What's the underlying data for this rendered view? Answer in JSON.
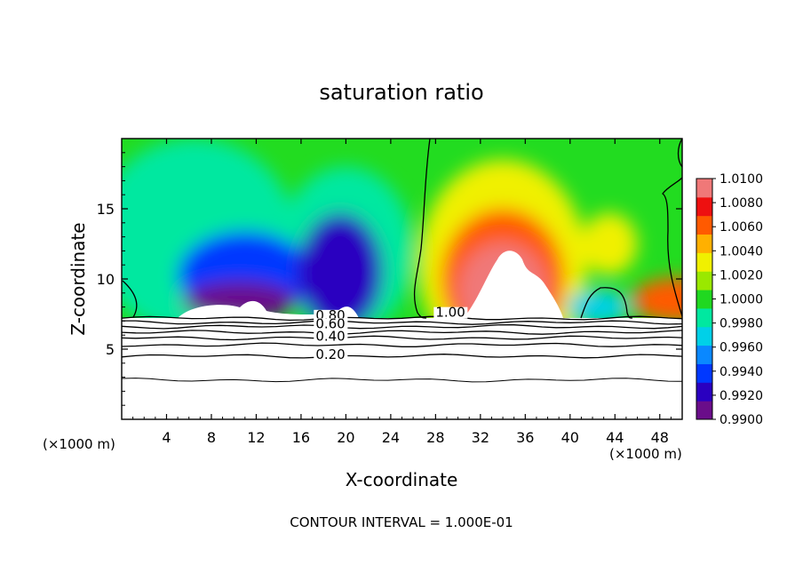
{
  "chart_data": {
    "type": "heatmap",
    "title": "saturation ratio",
    "xlabel": "X-coordinate",
    "ylabel": "Z-coordinate",
    "x_unit_label": "(×1000 m)",
    "footer": "CONTOUR INTERVAL = 1.000E-01",
    "xlim": [
      0,
      50
    ],
    "ylim": [
      0,
      20
    ],
    "x_ticks": [
      4,
      8,
      12,
      16,
      20,
      24,
      28,
      32,
      36,
      40,
      44,
      48
    ],
    "y_ticks": [
      5,
      10,
      15
    ],
    "colorbar": {
      "min": 0.99,
      "max": 1.01,
      "labels": [
        "1.0100",
        "1.0080",
        "1.0060",
        "1.0040",
        "1.0020",
        "1.0000",
        "0.9980",
        "0.9960",
        "0.9940",
        "0.9920",
        "0.9900"
      ],
      "colors": [
        "#6a0d8a",
        "#2a00c0",
        "#0038ff",
        "#0a88ff",
        "#00d0e8",
        "#00e8a0",
        "#20d820",
        "#9ae800",
        "#f0f000",
        "#ffb000",
        "#ff5a00",
        "#ee1010",
        "#f07878"
      ]
    },
    "contour_labels": [
      {
        "text": "1.00",
        "x": 28.0,
        "z": 7.3
      },
      {
        "text": "0.80",
        "x": 17.3,
        "z": 7.1
      },
      {
        "text": "0.60",
        "x": 17.3,
        "z": 6.5
      },
      {
        "text": "0.40",
        "x": 17.3,
        "z": 5.6
      },
      {
        "text": "0.20",
        "x": 17.3,
        "z": 4.3
      }
    ],
    "contour_lines_z": [
      7.2,
      6.9,
      6.6,
      6.2,
      5.8,
      5.3,
      4.5,
      2.8
    ],
    "field_blobs": [
      {
        "x": 6.5,
        "z": 13.0,
        "rx": 9.0,
        "rz": 7.0,
        "value": 0.9985
      },
      {
        "x": 20.0,
        "z": 12.0,
        "rx": 6.0,
        "rz": 6.0,
        "value": 0.9985
      },
      {
        "x": 11.0,
        "z": 10.2,
        "rx": 6.0,
        "rz": 3.2,
        "value": 0.994
      },
      {
        "x": 19.5,
        "z": 10.5,
        "rx": 3.8,
        "rz": 4.2,
        "value": 0.9925
      },
      {
        "x": 10.5,
        "z": 8.4,
        "rx": 5.0,
        "rz": 1.4,
        "value": 0.9905
      },
      {
        "x": 34.0,
        "z": 11.0,
        "rx": 7.5,
        "rz": 7.5,
        "value": 1.0035
      },
      {
        "x": 34.0,
        "z": 10.0,
        "rx": 5.5,
        "rz": 5.0,
        "value": 1.0068
      },
      {
        "x": 34.0,
        "z": 9.2,
        "rx": 4.0,
        "rz": 3.4,
        "value": 1.0085
      },
      {
        "x": 34.5,
        "z": 8.8,
        "rx": 2.6,
        "rz": 2.6,
        "value": 1.0105
      },
      {
        "x": 43.5,
        "z": 12.5,
        "rx": 2.5,
        "rz": 2.2,
        "value": 1.003
      },
      {
        "x": 49.5,
        "z": 8.5,
        "rx": 4.0,
        "rz": 1.6,
        "value": 1.0055
      },
      {
        "x": 42.5,
        "z": 8.0,
        "rx": 2.8,
        "rz": 1.2,
        "value": 0.997
      }
    ]
  }
}
